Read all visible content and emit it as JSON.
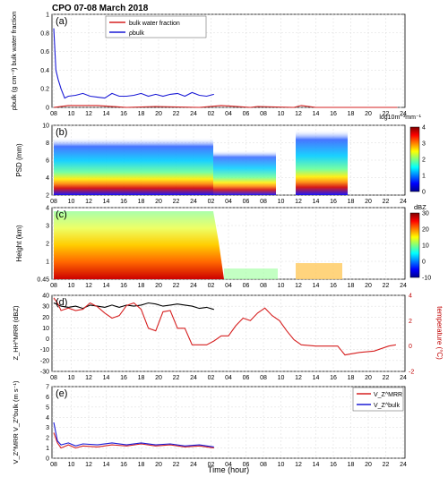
{
  "figure_title": "CPO 07-08 March 2018",
  "x_axis": {
    "label": "Time (hour)",
    "ticks": [
      "08",
      "10",
      "12",
      "14",
      "16",
      "18",
      "20",
      "22",
      "24",
      "02",
      "04",
      "06",
      "08",
      "10",
      "12",
      "14",
      "16",
      "18",
      "20",
      "22",
      "24"
    ]
  },
  "colors": {
    "red": "#d62020",
    "blue": "#1a1ad6",
    "black": "#000000",
    "axis_red": "#c00000",
    "grid": "#d9d9d9"
  },
  "chart_data": [
    {
      "panel": "(a)",
      "type": "line",
      "ylabel": "ρbulk (g cm⁻³) bulk water fraction",
      "ylim": [
        0,
        1
      ],
      "yticks": [
        "0",
        "0.2",
        "0.4",
        "0.6",
        "0.8",
        "1"
      ],
      "legend": [
        "bulk water fraction",
        "ρbulk"
      ],
      "legend_position": "top-left",
      "series": [
        {
          "name": "bulk water fraction",
          "color": "red",
          "x": [
            0,
            2,
            6,
            10,
            14,
            20,
            23,
            27,
            28,
            33,
            34,
            36,
            40,
            44,
            45,
            46,
            47,
            47.2
          ],
          "y": [
            0.0,
            0.02,
            0.02,
            0.0,
            0.01,
            0.0,
            0.02,
            0.0,
            0.01,
            0.0,
            0.02,
            0.0,
            0.0,
            0.0,
            0.0,
            0.0,
            0.0,
            0.0
          ]
        },
        {
          "name": "ρbulk",
          "color": "blue",
          "x": [
            0,
            0.3,
            0.6,
            1,
            1.5,
            2,
            3,
            4,
            5,
            6,
            7,
            8,
            9,
            10,
            11,
            12,
            13,
            14,
            15,
            16,
            17,
            18,
            19,
            20,
            21,
            22
          ],
          "y": [
            0.85,
            0.4,
            0.3,
            0.2,
            0.1,
            0.12,
            0.13,
            0.15,
            0.12,
            0.11,
            0.1,
            0.15,
            0.12,
            0.12,
            0.13,
            0.15,
            0.12,
            0.14,
            0.12,
            0.14,
            0.15,
            0.12,
            0.16,
            0.13,
            0.12,
            0.14
          ]
        }
      ]
    },
    {
      "panel": "(b)",
      "type": "heatmap",
      "ylabel": "PSD (mm)",
      "ylim": [
        0,
        10
      ],
      "yticks": [
        "2",
        "4",
        "6",
        "8",
        "10"
      ],
      "colorbar": {
        "label": "log10m⁻³mm⁻¹",
        "range": [
          0,
          4
        ],
        "ticks": [
          "0",
          "1",
          "2",
          "3",
          "4"
        ]
      }
    },
    {
      "panel": "(c)",
      "type": "heatmap",
      "ylabel": "Height (km)",
      "ylim": [
        0.45,
        4.6
      ],
      "yticks": [
        "0.45",
        "1",
        "2",
        "3",
        "4"
      ],
      "colorbar": {
        "label": "dBZ",
        "range": [
          -10,
          35
        ],
        "ticks": [
          "-10",
          "0",
          "10",
          "20",
          "30"
        ]
      }
    },
    {
      "panel": "(d)",
      "type": "line",
      "ylabel": "Z_HH^MRR (dBZ)",
      "ylim": [
        -30,
        40
      ],
      "yticks": [
        "-30",
        "-20",
        "-10",
        "0",
        "10",
        "20",
        "30",
        "40"
      ],
      "y2label": "temperature (°C)",
      "y2lim": [
        -2,
        4
      ],
      "y2ticks": [
        "-2",
        "0",
        "2",
        "4"
      ],
      "series": [
        {
          "name": "Z_HH^MRR",
          "color": "black",
          "axis": "left",
          "x": [
            0,
            1,
            2,
            3,
            4,
            5,
            6,
            7,
            8,
            9,
            10,
            11,
            12,
            13,
            14,
            15,
            16,
            17,
            18,
            19,
            20,
            21,
            22
          ],
          "y": [
            33,
            30,
            29,
            30,
            28,
            31,
            30,
            29,
            31,
            29,
            31,
            30,
            31,
            33,
            32,
            30,
            31,
            32,
            31,
            30,
            28,
            29,
            27
          ]
        },
        {
          "name": "temperature",
          "color": "red",
          "axis": "right",
          "x": [
            0,
            0.5,
            1,
            2,
            3,
            4,
            5,
            6,
            7,
            8,
            9,
            10,
            11,
            12,
            13,
            14,
            15,
            16,
            17,
            18,
            19,
            20,
            21,
            22,
            23,
            24,
            25,
            26,
            27,
            28,
            29,
            30,
            31,
            32,
            33,
            34,
            36,
            38,
            39,
            40,
            42,
            44,
            46,
            47
          ],
          "y": [
            3.8,
            3.4,
            2.8,
            3.0,
            2.8,
            2.9,
            3.4,
            3.1,
            2.6,
            2.2,
            2.4,
            3.2,
            3.4,
            2.9,
            1.4,
            1.2,
            2.7,
            2.8,
            1.4,
            1.4,
            0.1,
            0.1,
            0.1,
            0.4,
            0.8,
            0.8,
            1.6,
            2.2,
            2.0,
            2.6,
            3.0,
            2.4,
            2.0,
            1.2,
            0.5,
            0.1,
            0.0,
            0.0,
            0.0,
            -0.7,
            -0.5,
            -0.4,
            0.0,
            0.1
          ]
        }
      ]
    },
    {
      "panel": "(e)",
      "type": "line",
      "ylabel": "V_Z^MRR V_Z^bulk (m s⁻¹)",
      "ylim": [
        0,
        7
      ],
      "yticks": [
        "0",
        "1",
        "2",
        "3",
        "4",
        "5",
        "6",
        "7"
      ],
      "legend": [
        "V_Z^MRR",
        "V_Z^bulk"
      ],
      "legend_position": "top-right",
      "series": [
        {
          "name": "V_Z^MRR",
          "color": "red",
          "x": [
            0,
            0.5,
            1,
            2,
            3,
            4,
            6,
            8,
            10,
            12,
            14,
            16,
            18,
            20,
            22
          ],
          "y": [
            2.5,
            1.5,
            1.0,
            1.3,
            1.0,
            1.2,
            1.1,
            1.3,
            1.2,
            1.4,
            1.2,
            1.3,
            1.1,
            1.2,
            1.0
          ]
        },
        {
          "name": "V_Z^bulk",
          "color": "blue",
          "x": [
            0,
            0.5,
            1,
            2,
            3,
            4,
            6,
            8,
            10,
            12,
            14,
            16,
            18,
            20,
            22
          ],
          "y": [
            3.5,
            1.7,
            1.3,
            1.5,
            1.2,
            1.4,
            1.3,
            1.5,
            1.3,
            1.5,
            1.3,
            1.4,
            1.2,
            1.3,
            1.1
          ]
        }
      ]
    }
  ]
}
